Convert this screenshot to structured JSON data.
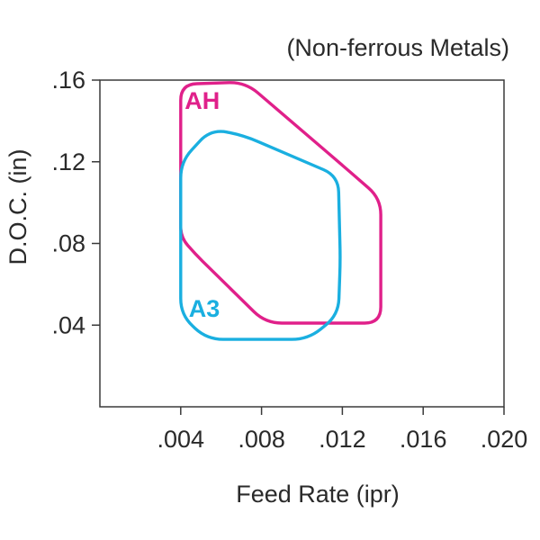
{
  "chart_data": {
    "type": "area",
    "title": "(Non-ferrous Metals)",
    "xlabel": "Feed Rate (ipr)",
    "ylabel": "D.O.C. (in)",
    "xlim": [
      0,
      0.02
    ],
    "ylim": [
      0,
      0.16
    ],
    "xticks": [
      {
        "value": 0.004,
        "label": ".004"
      },
      {
        "value": 0.008,
        "label": ".008"
      },
      {
        "value": 0.012,
        "label": ".012"
      },
      {
        "value": 0.016,
        "label": ".016"
      },
      {
        "value": 0.02,
        "label": ".020"
      }
    ],
    "yticks": [
      {
        "value": 0.04,
        "label": ".04"
      },
      {
        "value": 0.08,
        "label": ".08"
      },
      {
        "value": 0.12,
        "label": ".12"
      },
      {
        "value": 0.16,
        "label": ".16"
      }
    ],
    "grid": false,
    "series": [
      {
        "name": "AH",
        "color": "#e0208a",
        "boundary": [
          [
            0.004,
            0.083
          ],
          [
            0.004,
            0.158
          ],
          [
            0.0072,
            0.159
          ],
          [
            0.0118,
            0.12
          ],
          [
            0.0139,
            0.102
          ],
          [
            0.0139,
            0.041
          ],
          [
            0.0082,
            0.041
          ],
          [
            0.0047,
            0.075
          ]
        ],
        "label_at": [
          0.0042,
          0.146
        ]
      },
      {
        "name": "A3",
        "color": "#1aafe0",
        "boundary": [
          [
            0.004,
            0.12
          ],
          [
            0.0055,
            0.136
          ],
          [
            0.0071,
            0.133
          ],
          [
            0.0118,
            0.113
          ],
          [
            0.0119,
            0.072
          ],
          [
            0.0118,
            0.045
          ],
          [
            0.0103,
            0.033
          ],
          [
            0.0053,
            0.033
          ],
          [
            0.004,
            0.045
          ]
        ],
        "label_at": [
          0.0044,
          0.044
        ]
      }
    ]
  }
}
